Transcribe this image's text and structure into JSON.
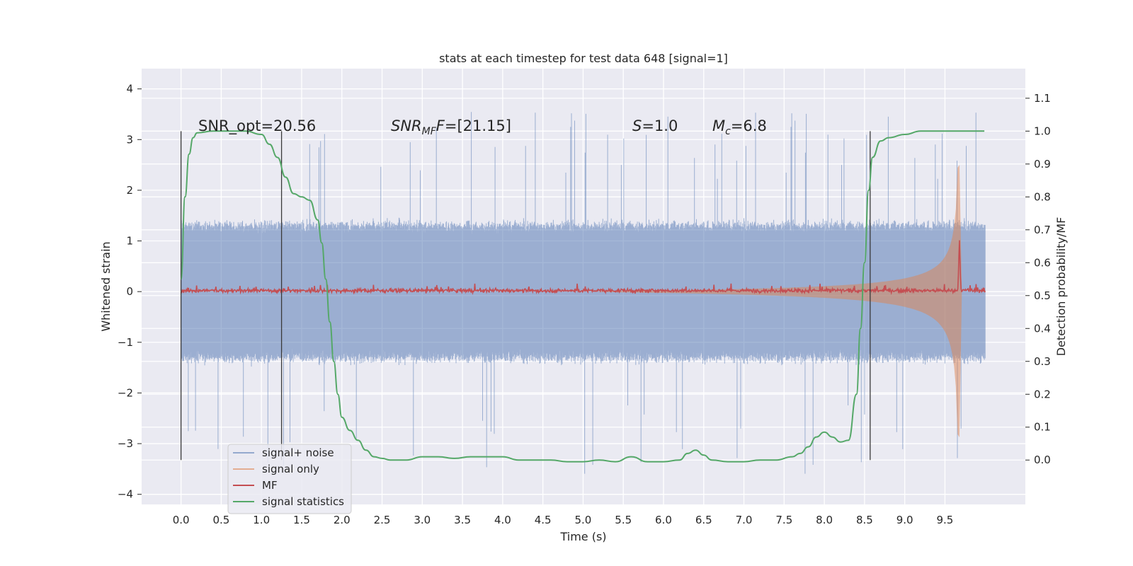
{
  "chart_data": {
    "type": "line",
    "title": "stats at each timestep for test data 648 [signal=1]",
    "xlabel": "Time (s)",
    "ylabel": "Whitened strain",
    "y2label": "Detection probability/MF",
    "xlim": [
      -0.49,
      10.5
    ],
    "ylim": [
      -4.2,
      4.4
    ],
    "y2lim": [
      -0.135,
      1.19
    ],
    "x_ticks": [
      "0.0",
      "0.5",
      "1.0",
      "1.5",
      "2.0",
      "2.5",
      "3.0",
      "3.5",
      "4.0",
      "4.5",
      "5.0",
      "5.5",
      "6.0",
      "6.5",
      "7.0",
      "7.5",
      "8.0",
      "8.5",
      "9.0",
      "9.5"
    ],
    "y_ticks": [
      "4",
      "3",
      "2",
      "1",
      "0",
      "−1",
      "−2",
      "−3",
      "−4"
    ],
    "y2_ticks": [
      "1.1",
      "1.0",
      "0.9",
      "0.8",
      "0.7",
      "0.6",
      "0.5",
      "0.4",
      "0.3",
      "0.2",
      "0.1",
      "0.0"
    ],
    "grid": true,
    "legend_placement": "lower-left",
    "colors": {
      "background": "#eaeaf2",
      "grid": "#ffffff",
      "signal_noise": "#4c72b0",
      "signal_only": "#dd8452",
      "mf": "#c44e52",
      "statistics": "#55a868",
      "vlines": "#3a3a3a"
    },
    "annotations": {
      "snr_opt": "SNR_opt=20.56",
      "snr_mf_main": "SNR",
      "snr_mf_sub": "MF",
      "snr_mf_rest": "=[21.15]",
      "s_value": "=1.0",
      "s_symbol": "S",
      "mc_symbol": "M",
      "mc_sub": "c",
      "mc_value": "=6.8"
    },
    "vertical_lines_x": [
      0.0,
      1.25,
      8.57
    ],
    "series": [
      {
        "name": "signal+ noise",
        "description_values": "noise envelope approx ±1.3 with spikes up to ±4, over 0 to 10 s",
        "x_range": [
          0.0,
          10.0
        ],
        "envelope": 1.3
      },
      {
        "name": "signal only",
        "description_values": "chirp with amplitude growing from ~0 near 5.2 s to ~2.5 at 9.68 s",
        "start": 5.2,
        "merger": 9.68,
        "peak": 2.5
      },
      {
        "name": "MF",
        "base": 0.02,
        "peak_x": 9.68,
        "peak_y": 0.98
      },
      {
        "name": "signal statistics",
        "x": [
          0.0,
          0.05,
          0.1,
          0.15,
          0.2,
          0.4,
          0.6,
          0.8,
          1.0,
          1.1,
          1.2,
          1.3,
          1.4,
          1.5,
          1.6,
          1.7,
          1.75,
          1.8,
          1.85,
          1.9,
          1.95,
          2.0,
          2.1,
          2.2,
          2.3,
          2.4,
          2.5,
          2.6,
          2.8,
          3.0,
          3.2,
          3.4,
          3.6,
          3.8,
          4.0,
          4.2,
          4.4,
          4.6,
          4.8,
          5.0,
          5.2,
          5.4,
          5.6,
          5.8,
          6.0,
          6.2,
          6.3,
          6.4,
          6.5,
          6.6,
          6.8,
          7.0,
          7.2,
          7.4,
          7.6,
          7.7,
          7.8,
          7.9,
          8.0,
          8.1,
          8.2,
          8.3,
          8.4,
          8.45,
          8.5,
          8.55,
          8.6,
          8.7,
          8.8,
          9.0,
          9.2,
          9.4,
          9.6,
          9.8,
          9.99
        ],
        "values": [
          0.55,
          0.8,
          0.93,
          0.98,
          0.995,
          1.0,
          1.0,
          1.0,
          0.99,
          0.96,
          0.92,
          0.86,
          0.81,
          0.8,
          0.79,
          0.73,
          0.66,
          0.55,
          0.42,
          0.3,
          0.2,
          0.13,
          0.09,
          0.06,
          0.03,
          0.01,
          0.005,
          0.0,
          0.0,
          0.01,
          0.01,
          0.005,
          0.01,
          0.01,
          0.01,
          0.0,
          0.0,
          0.0,
          -0.005,
          -0.005,
          0.0,
          -0.005,
          0.01,
          -0.005,
          -0.005,
          0.0,
          0.02,
          0.03,
          0.015,
          0.0,
          -0.005,
          -0.005,
          0.0,
          0.0,
          0.01,
          0.02,
          0.04,
          0.07,
          0.085,
          0.07,
          0.055,
          0.06,
          0.2,
          0.4,
          0.6,
          0.82,
          0.92,
          0.97,
          0.98,
          0.99,
          1.0,
          1.0,
          1.0,
          1.0,
          1.0
        ]
      }
    ],
    "legend": [
      "signal+ noise",
      "signal only",
      "MF",
      "signal statistics"
    ]
  }
}
